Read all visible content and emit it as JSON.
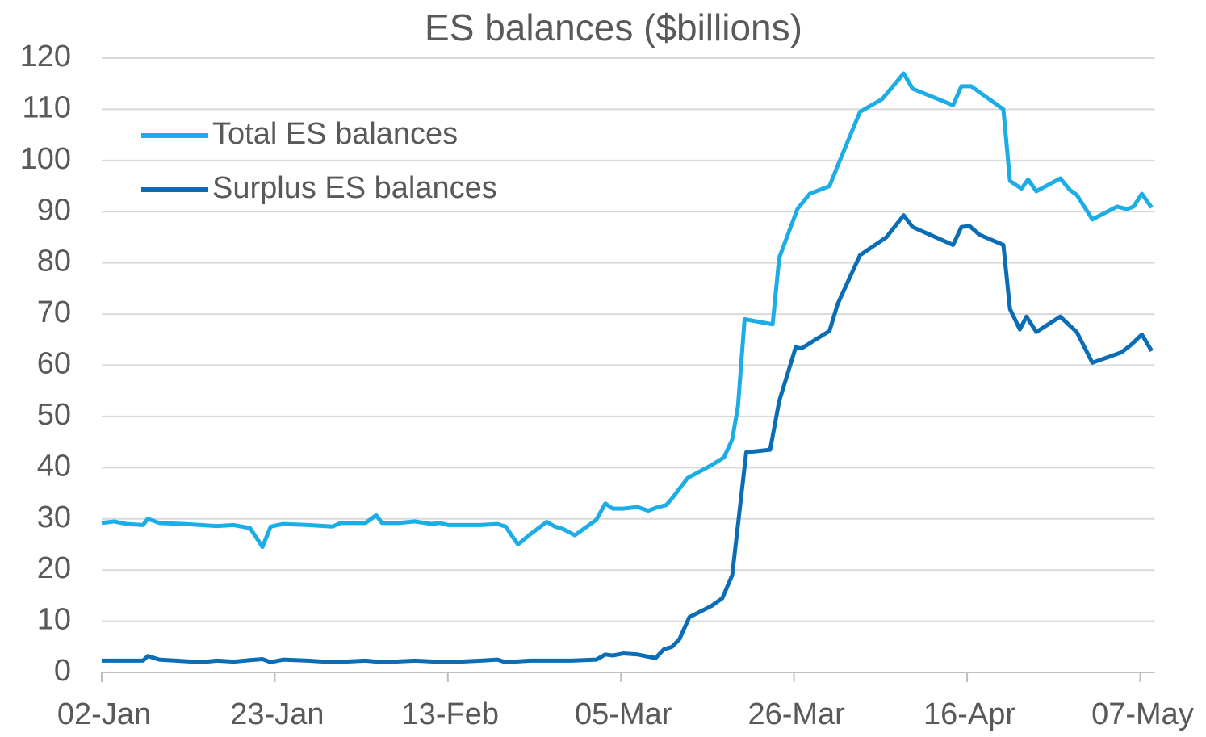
{
  "chart_data": {
    "type": "line",
    "title": "ES balances ($billions)",
    "xlim": [
      0,
      128.5
    ],
    "xticks": [
      {
        "value": 0,
        "label": "02-Jan"
      },
      {
        "value": 21,
        "label": "23-Jan"
      },
      {
        "value": 42,
        "label": "13-Feb"
      },
      {
        "value": 63,
        "label": "05-Mar"
      },
      {
        "value": 84,
        "label": "26-Mar"
      },
      {
        "value": 105,
        "label": "16-Apr"
      },
      {
        "value": 126,
        "label": "07-May"
      }
    ],
    "ylim": [
      0,
      120
    ],
    "yticks": [
      0,
      10,
      20,
      30,
      40,
      50,
      60,
      70,
      80,
      90,
      100,
      110,
      120
    ],
    "grid": true,
    "legend": "upper left",
    "series": [
      {
        "name": "Total ES balances",
        "color": "#1dade6",
        "x": [
          0,
          1.5,
          3,
          5,
          5.6,
          7,
          10,
          12,
          14,
          16,
          18,
          19.5,
          20.5,
          22,
          25,
          28,
          29,
          32,
          33.3,
          34,
          36,
          38,
          40,
          41,
          42,
          46,
          48,
          49,
          50.5,
          52,
          54,
          55,
          56,
          57.4,
          60,
          61.1,
          62,
          63.3,
          65,
          66.3,
          67.5,
          68.5,
          69.2,
          71.1,
          74,
          75.5,
          76.5,
          77.2,
          78,
          81.4,
          82.2,
          84.4,
          85.9,
          88.3,
          89.3,
          92,
          94.7,
          97.3,
          98.4,
          103.3,
          104.3,
          105.5,
          109.4,
          110.2,
          111.6,
          112.4,
          113.4,
          116.3,
          117.5,
          118.3,
          120.2,
          123.2,
          124.4,
          125.2,
          126.2,
          127.4
        ],
        "values": [
          29.2,
          29.5,
          29,
          28.8,
          30,
          29.2,
          29,
          28.8,
          28.6,
          28.8,
          28.2,
          24.5,
          28.5,
          29,
          28.8,
          28.5,
          29.2,
          29.2,
          30.7,
          29.2,
          29.2,
          29.5,
          29,
          29.2,
          28.8,
          28.8,
          29,
          28.5,
          25,
          27,
          29.4,
          28.5,
          28,
          26.8,
          29.8,
          33,
          32,
          32,
          32.3,
          31.6,
          32.3,
          32.7,
          34,
          38,
          40.5,
          42,
          45.5,
          52,
          69,
          68,
          81,
          90.5,
          93.5,
          95,
          99,
          109.5,
          112,
          117,
          114,
          110.8,
          114.5,
          114.5,
          110,
          96,
          94.5,
          96.3,
          94,
          96.5,
          94.2,
          93.3,
          88.5,
          91,
          90.5,
          91,
          93.5,
          90.8
        ]
      },
      {
        "name": "Surplus ES balances",
        "color": "#0b6db5",
        "x": [
          0,
          3,
          5,
          5.6,
          7,
          10,
          12,
          14,
          16,
          18,
          19.5,
          20.5,
          22,
          25,
          28,
          32,
          34,
          38,
          42,
          46,
          48,
          49,
          52,
          57,
          60,
          61.1,
          62,
          63.3,
          65,
          67.2,
          68.2,
          69.2,
          70.1,
          71.3,
          74,
          75.3,
          76.5,
          78.2,
          81.1,
          82.2,
          84.2,
          84.9,
          88.3,
          89.3,
          92,
          95.2,
          97.3,
          98.4,
          103.3,
          104.3,
          105.3,
          106.5,
          109.4,
          110.2,
          111.4,
          112.2,
          113.4,
          116.3,
          118.3,
          120.2,
          123.7,
          124.9,
          126.2,
          127.4
        ],
        "values": [
          2.3,
          2.3,
          2.3,
          3.2,
          2.5,
          2.2,
          2,
          2.3,
          2.1,
          2.4,
          2.6,
          2,
          2.5,
          2.3,
          2,
          2.3,
          2,
          2.3,
          2,
          2.3,
          2.5,
          2,
          2.3,
          2.3,
          2.5,
          3.5,
          3.3,
          3.7,
          3.5,
          2.8,
          4.5,
          5,
          6.5,
          10.8,
          13,
          14.5,
          19,
          43,
          43.5,
          53,
          63.5,
          63.3,
          66.7,
          72,
          81.5,
          85,
          89.3,
          87,
          83.5,
          87,
          87.2,
          85.5,
          83.5,
          71,
          67,
          69.5,
          66.5,
          69.5,
          66.5,
          60.5,
          62.5,
          64,
          66,
          62.8
        ]
      }
    ]
  }
}
